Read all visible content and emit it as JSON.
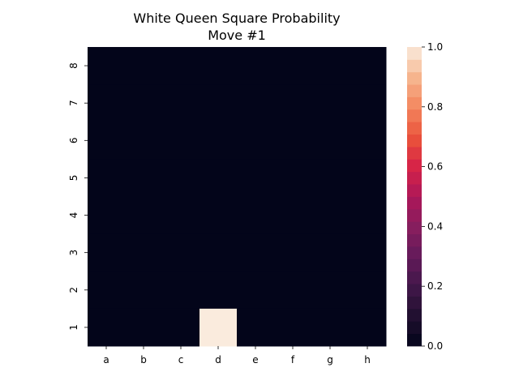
{
  "chart_data": {
    "type": "heatmap",
    "title": "White Queen Square Probability",
    "subtitle": "Move #1",
    "xlabel": "",
    "ylabel": "",
    "x_categories": [
      "a",
      "b",
      "c",
      "d",
      "e",
      "f",
      "g",
      "h"
    ],
    "y_categories": [
      "8",
      "7",
      "6",
      "5",
      "4",
      "3",
      "2",
      "1"
    ],
    "values": [
      [
        0,
        0,
        0,
        0,
        0,
        0,
        0,
        0
      ],
      [
        0,
        0,
        0,
        0,
        0,
        0,
        0,
        0
      ],
      [
        0,
        0,
        0,
        0,
        0,
        0,
        0,
        0
      ],
      [
        0,
        0,
        0,
        0,
        0,
        0,
        0,
        0
      ],
      [
        0,
        0,
        0,
        0,
        0,
        0,
        0,
        0
      ],
      [
        0,
        0,
        0,
        0,
        0,
        0,
        0,
        0
      ],
      [
        0,
        0,
        0,
        0,
        0,
        0,
        0,
        0
      ],
      [
        0,
        0,
        0,
        1,
        0,
        0,
        0,
        0
      ]
    ],
    "colorbar": {
      "range": [
        0.0,
        1.0
      ],
      "ticks": [
        "0.0",
        "0.2",
        "0.4",
        "0.6",
        "0.8",
        "1.0"
      ],
      "colormap": "rocket"
    }
  }
}
